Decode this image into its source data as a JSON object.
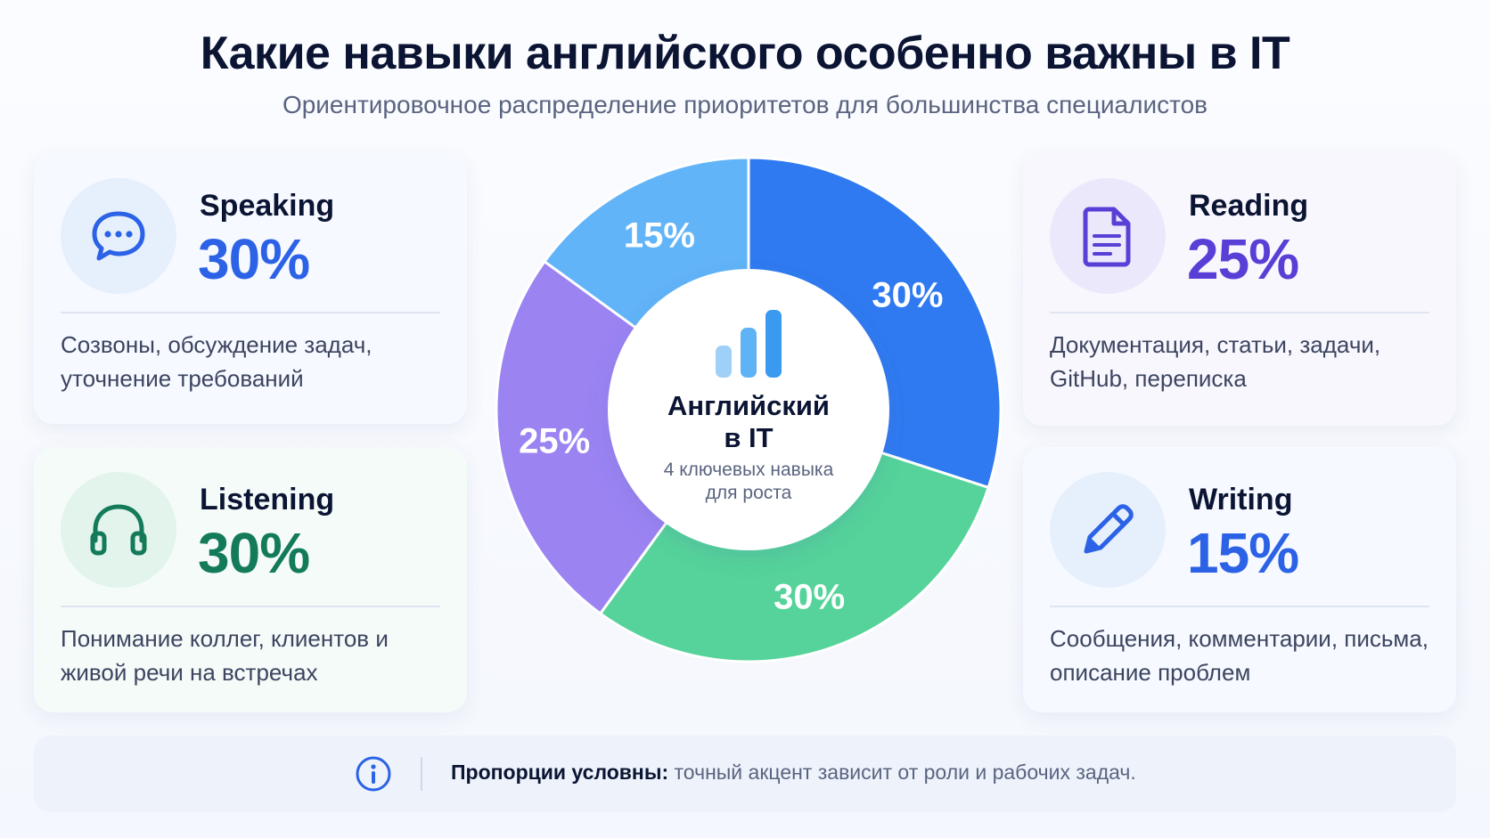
{
  "title": "Какие навыки английского особенно важны в IT",
  "subtitle": "Ориентировочное распределение приоритетов для большинства специалистов",
  "cards": {
    "speaking": {
      "name": "Speaking",
      "pct": "30%",
      "desc": "Созвоны, обсуждение задач, уточнение требований",
      "icon": "chat-bubble-icon",
      "color": "#2b62e6"
    },
    "listening": {
      "name": "Listening",
      "pct": "30%",
      "desc": "Понимание коллег, клиентов и живой речи на встречах",
      "icon": "headphones-icon",
      "color": "#137a5a"
    },
    "reading": {
      "name": "Reading",
      "pct": "25%",
      "desc": "Документация, статьи, задачи, GitHub, переписка",
      "icon": "document-icon",
      "color": "#5a3fd6"
    },
    "writing": {
      "name": "Writing",
      "pct": "15%",
      "desc": "Сообщения, комментарии, письма, описание проблем",
      "icon": "pencil-icon",
      "color": "#2b62e6"
    }
  },
  "center": {
    "title_line1": "Английский",
    "title_line2": "в IT",
    "sub_line1": "4 ключевых навыка",
    "sub_line2": "для роста",
    "icon": "bar-chart-icon"
  },
  "footer": {
    "bold": "Пропорции условны:",
    "text": " точный акцент зависит от роли и рабочих задач.",
    "icon": "info-icon"
  },
  "chart_data": {
    "type": "pie",
    "donut": true,
    "title": "Какие навыки английского особенно важны в IT",
    "categories": [
      "Speaking",
      "Listening",
      "Reading",
      "Writing"
    ],
    "values": [
      30,
      30,
      25,
      15
    ],
    "unit": "%",
    "slice_labels": [
      "30%",
      "30%",
      "25%",
      "15%"
    ],
    "colors": [
      "#2f7af0",
      "#55d39a",
      "#9b83f2",
      "#62b4f8"
    ]
  }
}
